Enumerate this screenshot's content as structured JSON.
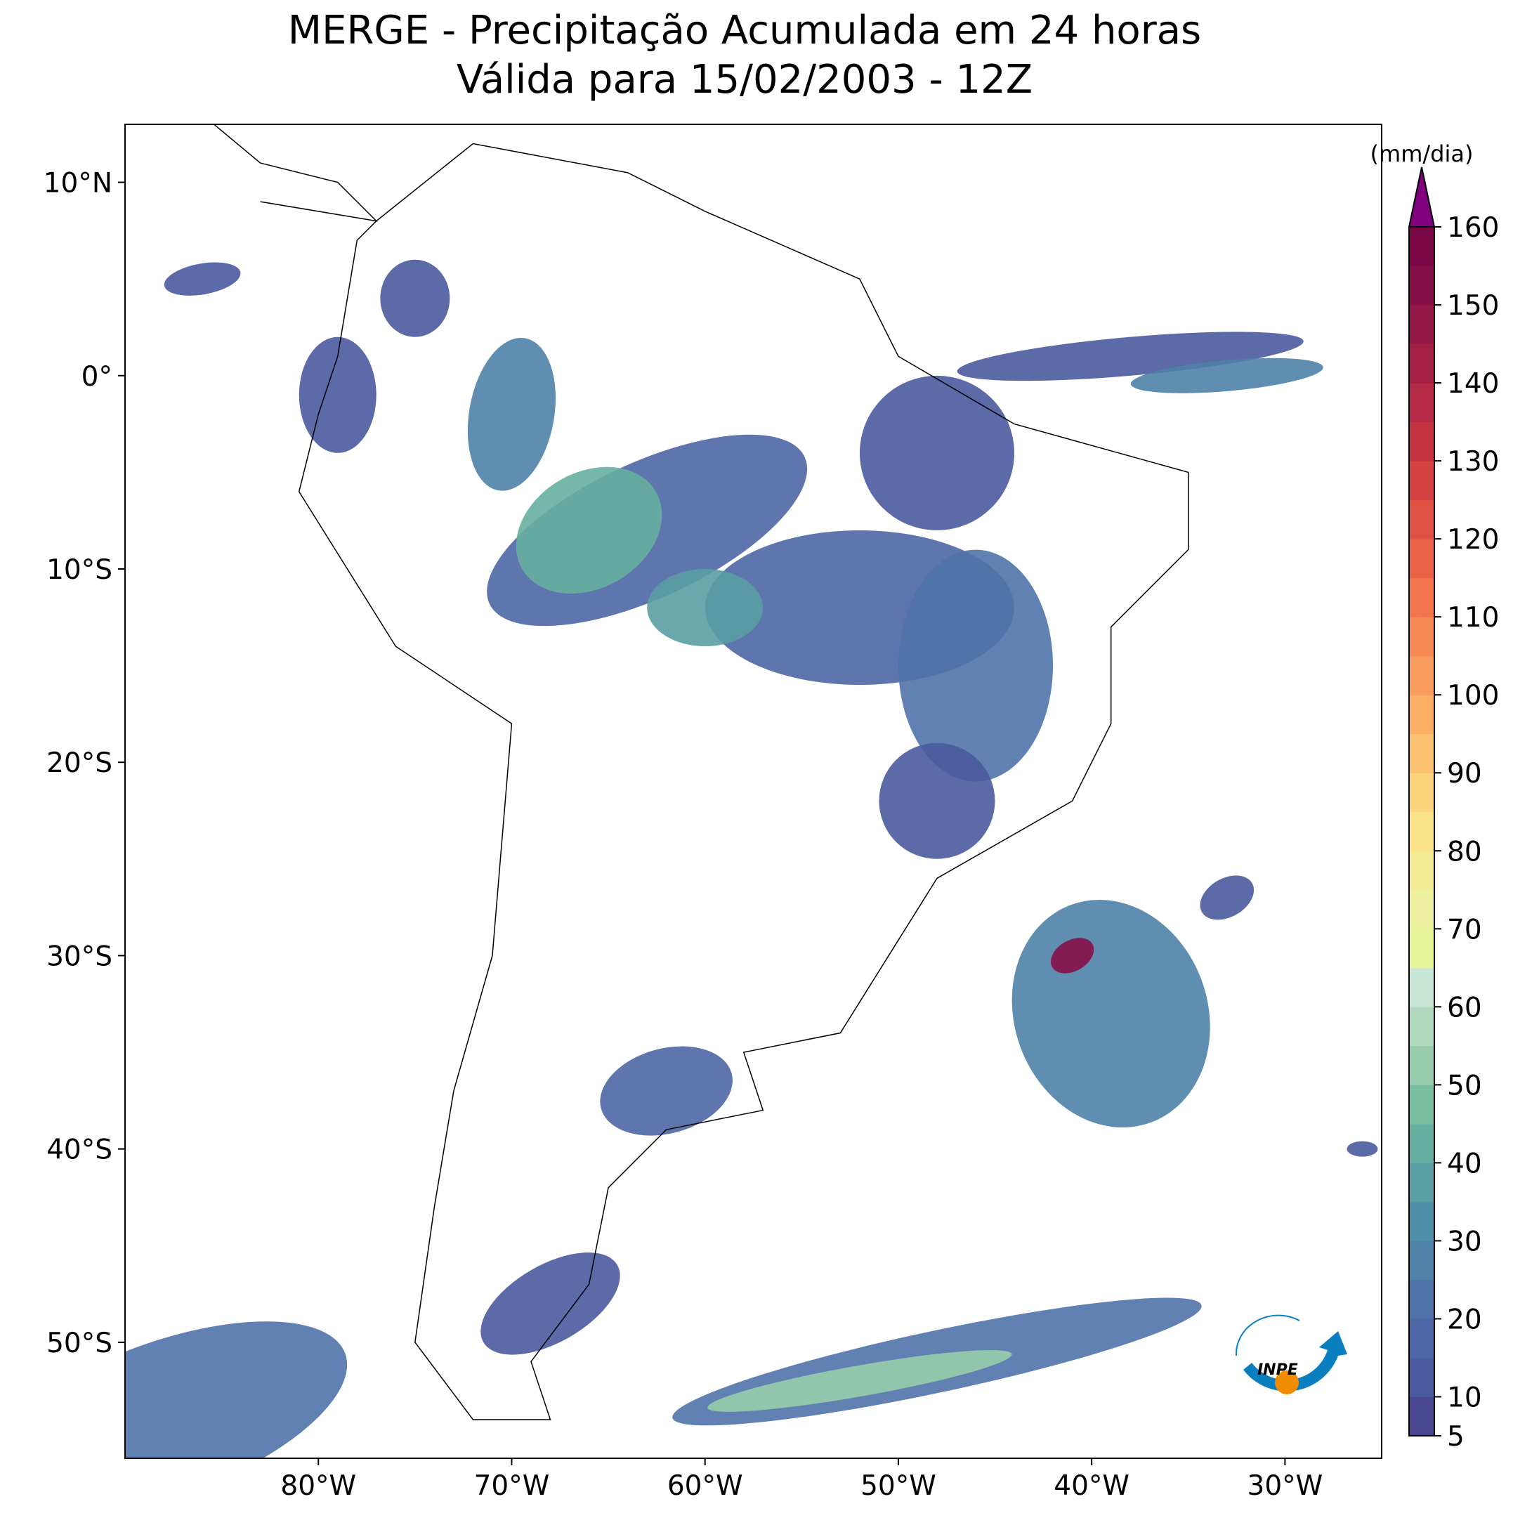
{
  "title": {
    "line1": "MERGE - Precipitação Acumulada em 24 horas",
    "line2": "Válida para 15/02/2003 - 12Z"
  },
  "map": {
    "xlim": [
      -90,
      -25
    ],
    "ylim": [
      -56,
      13
    ],
    "xticks": [
      {
        "value": -80,
        "label": "80°W"
      },
      {
        "value": -70,
        "label": "70°W"
      },
      {
        "value": -60,
        "label": "60°W"
      },
      {
        "value": -50,
        "label": "50°W"
      },
      {
        "value": -40,
        "label": "40°W"
      },
      {
        "value": -30,
        "label": "30°W"
      }
    ],
    "yticks": [
      {
        "value": 10,
        "label": "10°N"
      },
      {
        "value": 0,
        "label": "0°"
      },
      {
        "value": -10,
        "label": "10°S"
      },
      {
        "value": -20,
        "label": "20°S"
      },
      {
        "value": -30,
        "label": "30°S"
      },
      {
        "value": -40,
        "label": "40°S"
      },
      {
        "value": -50,
        "label": "50°S"
      }
    ]
  },
  "colorbar": {
    "label": "(mm/dia)",
    "lim": [
      5,
      160
    ],
    "ticks": [
      5,
      10,
      20,
      30,
      40,
      50,
      60,
      70,
      80,
      90,
      100,
      110,
      120,
      130,
      140,
      150,
      160
    ],
    "colors": [
      "#48478f",
      "#4a5a9f",
      "#4e66a5",
      "#4f73a8",
      "#4e82a9",
      "#508fa8",
      "#5a9fa3",
      "#66afa0",
      "#7bbfa3",
      "#97cdad",
      "#b0d9bd",
      "#c7e5d4",
      "#e6f598",
      "#eef2a0",
      "#f4ec94",
      "#f9e287",
      "#fdd47e",
      "#fcc272",
      "#fbb066",
      "#f99d5e",
      "#f78a54",
      "#f2764c",
      "#ea6346",
      "#df5143",
      "#d34142",
      "#c53442",
      "#b52a44",
      "#a52046",
      "#951946",
      "#860f48",
      "#7a0847"
    ],
    "extend_color": "#800080"
  },
  "logo": "INPE"
}
